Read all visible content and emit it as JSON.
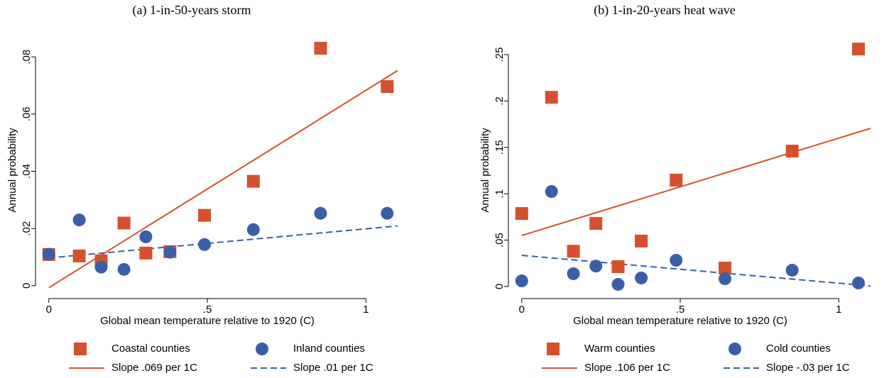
{
  "chart_data": [
    {
      "type": "scatter",
      "title": "(a) 1-in-50-years storm",
      "x_label": "Global mean temperature relative to 1920 (C)",
      "y_label": "Annual probability",
      "xlim": [
        -0.042,
        1.1
      ],
      "ylim": [
        -0.0045,
        0.085
      ],
      "xticks": [
        0,
        {
          "value": 0.5,
          "label": ".5"
        },
        1
      ],
      "yticks": [
        0,
        {
          "value": 0.02,
          "label": ".02"
        },
        {
          "value": 0.04,
          "label": ".04"
        },
        {
          "value": 0.06,
          "label": ".06"
        },
        {
          "value": 0.08,
          "label": ".08"
        }
      ],
      "series": [
        {
          "name": "Coastal counties",
          "color": "#d6502e",
          "marker": "square",
          "x": [
            0,
            0.096,
            0.165,
            0.237,
            0.306,
            0.382,
            0.491,
            0.645,
            0.857,
            1.067
          ],
          "values": [
            0.0109,
            0.0104,
            0.0087,
            0.0219,
            0.0114,
            0.0119,
            0.0246,
            0.0365,
            0.083,
            0.0696
          ]
        },
        {
          "name": "Inland counties",
          "color": "#3a5fa8",
          "marker": "circle",
          "x": [
            0,
            0.096,
            0.165,
            0.237,
            0.306,
            0.382,
            0.491,
            0.645,
            0.857,
            1.067
          ],
          "values": [
            0.011,
            0.023,
            0.0065,
            0.0057,
            0.0171,
            0.0117,
            0.0144,
            0.0196,
            0.0253,
            0.0253
          ]
        },
        {
          "name": "Slope .069 per 1C",
          "color": "#d6502e",
          "line": "solid",
          "x": [
            0,
            1.1
          ],
          "values": [
            -0.0007,
            0.0752
          ]
        },
        {
          "name": "Slope .01 per 1C",
          "color": "#3a5fa8",
          "line": "dashed",
          "x": [
            0,
            1.1
          ],
          "values": [
            0.0097,
            0.0209
          ]
        }
      ]
    },
    {
      "type": "scatter",
      "title": "(b) 1-in-20-years heat wave",
      "x_label": "Global mean temperature relative to 1920 (C)",
      "y_label": "Annual probability",
      "xlim": [
        -0.042,
        1.1
      ],
      "ylim": [
        -0.013,
        0.263
      ],
      "xticks": [
        0,
        {
          "value": 0.5,
          "label": ".5"
        },
        1
      ],
      "yticks": [
        0,
        {
          "value": 0.05,
          "label": ".05"
        },
        {
          "value": 0.1,
          "label": ".1"
        },
        {
          "value": 0.15,
          "label": ".15"
        },
        {
          "value": 0.2,
          "label": ".2"
        },
        {
          "value": 0.25,
          "label": ".25"
        }
      ],
      "series": [
        {
          "name": "Warm counties",
          "color": "#d6502e",
          "marker": "square",
          "x": [
            0,
            0.094,
            0.163,
            0.234,
            0.304,
            0.377,
            0.487,
            0.641,
            0.853,
            1.062
          ],
          "values": [
            0.0787,
            0.204,
            0.038,
            0.068,
            0.0214,
            0.049,
            0.1147,
            0.0199,
            0.146,
            0.256
          ]
        },
        {
          "name": "Cold counties",
          "color": "#3a5fa8",
          "marker": "circle",
          "x": [
            0,
            0.094,
            0.163,
            0.234,
            0.304,
            0.377,
            0.487,
            0.641,
            0.853,
            1.062
          ],
          "values": [
            0.0061,
            0.1024,
            0.0138,
            0.022,
            0.0023,
            0.0092,
            0.0283,
            0.0084,
            0.0176,
            0.0038
          ]
        },
        {
          "name": "Slope .106 per 1C",
          "color": "#d6502e",
          "line": "solid",
          "x": [
            0,
            1.1
          ],
          "values": [
            0.055,
            0.1705
          ]
        },
        {
          "name": "Slope -.03 per 1C",
          "color": "#3a5fa8",
          "line": "dashed",
          "x": [
            0,
            1.1
          ],
          "values": [
            0.0336,
            0.0006
          ]
        }
      ]
    }
  ]
}
